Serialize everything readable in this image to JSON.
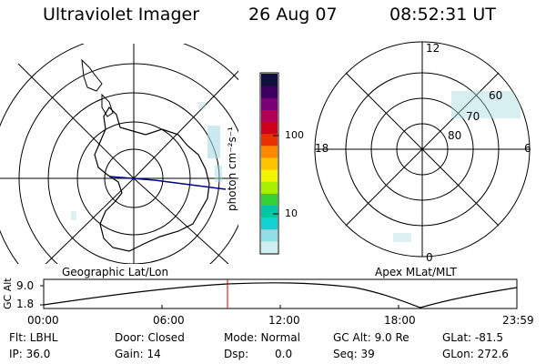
{
  "header": {
    "instrument": "Ultraviolet Imager",
    "date": "26 Aug 07",
    "time": "08:52:31 UT"
  },
  "left_panel": {
    "caption": "Geographic Lat/Lon"
  },
  "right_panel": {
    "caption": "Apex MLat/MLT",
    "mlt_labels": [
      "12",
      "18",
      "6",
      "0"
    ],
    "mlat_labels": [
      "60",
      "70",
      "80"
    ]
  },
  "colorbar": {
    "unit": "photon cm⁻²s⁻¹",
    "ticks": [
      "100",
      "10"
    ],
    "colors": [
      "#101040",
      "#3b0060",
      "#7a0077",
      "#b00058",
      "#d0001a",
      "#e83000",
      "#ff8800",
      "#ffc400",
      "#f4f400",
      "#a8f000",
      "#33d233",
      "#00c9a0",
      "#10d4d4",
      "#8fe0e4",
      "#cfeef0"
    ]
  },
  "altitude_plot": {
    "ylabel": "GC Alt",
    "yticks": [
      "9.0",
      "1.8"
    ],
    "xticks": [
      "00:00",
      "06:00",
      "12:00",
      "18:00",
      "23:59"
    ],
    "current_time_marker": "08:52"
  },
  "footer": {
    "flt": "Flt: LBHL",
    "ip": "IP: 36.0",
    "door": "Door: Closed",
    "gain": "Gain: 14",
    "mode": "Mode: Normal",
    "dsp_label": "Dsp:",
    "dsp_value": "0.0",
    "gc_alt": "GC Alt: 9.0 Re",
    "seq": "Seq: 39",
    "glat": "GLat: -81.5",
    "glon": "GLon: 272.6"
  }
}
